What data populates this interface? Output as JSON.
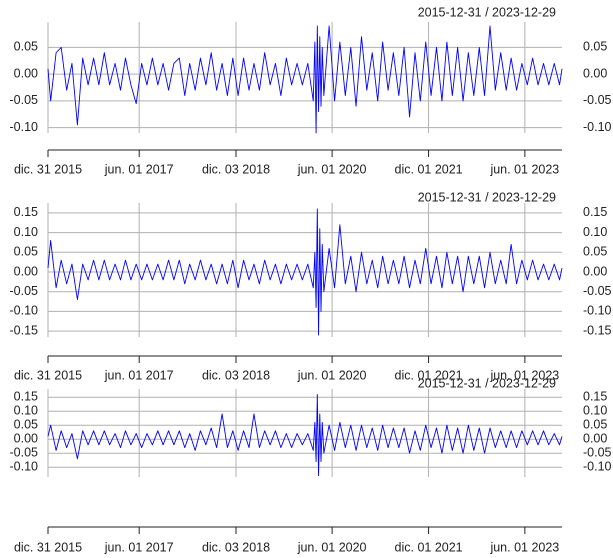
{
  "chart_data": [
    {
      "type": "line",
      "title": "2015-12-31 / 2023-12-29",
      "color": "#0000ff",
      "grid": true,
      "xlim": [
        "2015-12-31",
        "2023-12-29"
      ],
      "xticks": [
        {
          "value": "2015-12-31",
          "label": "dic. 31 2015"
        },
        {
          "value": "2017-06-01",
          "label": "jun. 01 2017"
        },
        {
          "value": "2018-12-03",
          "label": "dic. 03 2018"
        },
        {
          "value": "2020-06-01",
          "label": "jun. 01 2020"
        },
        {
          "value": "2021-12-01",
          "label": "dic. 01 2021"
        },
        {
          "value": "2023-06-01",
          "label": "jun. 01 2023"
        }
      ],
      "ylim": [
        -0.11,
        0.09
      ],
      "yticks": [
        {
          "value": -0.1,
          "label": "-0.10"
        },
        -0.05,
        {
          "value": 0,
          "label": "0.00"
        },
        0.05
      ],
      "x": [
        "2015-12-31",
        "2016-01-15",
        "2016-02-15",
        "2016-03-15",
        "2016-04-15",
        "2016-05-15",
        "2016-06-15",
        "2016-07-15",
        "2016-08-15",
        "2016-09-15",
        "2016-10-15",
        "2016-11-15",
        "2016-12-15",
        "2017-01-15",
        "2017-02-15",
        "2017-03-15",
        "2017-04-15",
        "2017-05-15",
        "2017-06-15",
        "2017-07-15",
        "2017-08-15",
        "2017-09-15",
        "2017-10-15",
        "2017-11-15",
        "2017-12-15",
        "2018-01-15",
        "2018-02-15",
        "2018-03-15",
        "2018-04-15",
        "2018-05-15",
        "2018-06-15",
        "2018-07-15",
        "2018-08-15",
        "2018-09-15",
        "2018-10-15",
        "2018-11-15",
        "2018-12-15",
        "2019-01-15",
        "2019-02-15",
        "2019-03-15",
        "2019-04-15",
        "2019-05-15",
        "2019-06-15",
        "2019-07-15",
        "2019-08-15",
        "2019-09-15",
        "2019-10-15",
        "2019-11-15",
        "2019-12-15",
        "2020-01-15",
        "2020-02-15",
        "2020-02-24",
        "2020-03-02",
        "2020-03-09",
        "2020-03-16",
        "2020-03-23",
        "2020-03-30",
        "2020-04-06",
        "2020-04-15",
        "2020-05-15",
        "2020-06-15",
        "2020-07-15",
        "2020-08-15",
        "2020-09-15",
        "2020-10-15",
        "2020-11-15",
        "2020-12-15",
        "2021-01-15",
        "2021-02-15",
        "2021-03-15",
        "2021-04-15",
        "2021-05-15",
        "2021-06-15",
        "2021-07-15",
        "2021-08-15",
        "2021-09-15",
        "2021-10-15",
        "2021-11-15",
        "2021-12-15",
        "2022-01-15",
        "2022-02-15",
        "2022-03-15",
        "2022-04-15",
        "2022-05-15",
        "2022-06-15",
        "2022-07-15",
        "2022-08-15",
        "2022-09-15",
        "2022-10-15",
        "2022-11-15",
        "2022-12-15",
        "2023-01-15",
        "2023-02-15",
        "2023-03-15",
        "2023-04-15",
        "2023-05-15",
        "2023-06-15",
        "2023-07-15",
        "2023-08-15",
        "2023-09-15",
        "2023-10-15",
        "2023-11-15",
        "2023-12-15",
        "2023-12-29"
      ],
      "values": [
        0.01,
        -0.05,
        0.04,
        0.05,
        -0.03,
        0.02,
        -0.095,
        0.03,
        -0.02,
        0.03,
        -0.02,
        0.04,
        -0.02,
        0.02,
        -0.03,
        0.03,
        -0.02,
        -0.055,
        0.02,
        -0.02,
        0.03,
        -0.02,
        0.02,
        -0.03,
        0.02,
        0.03,
        -0.04,
        0.02,
        -0.03,
        0.03,
        -0.02,
        0.04,
        -0.03,
        0.02,
        -0.04,
        0.03,
        -0.04,
        0.03,
        -0.03,
        0.02,
        -0.03,
        0.04,
        -0.02,
        0.02,
        -0.04,
        0.03,
        -0.02,
        0.02,
        -0.02,
        0.02,
        -0.05,
        0.06,
        -0.11,
        0.09,
        -0.07,
        0.07,
        -0.06,
        0.05,
        -0.04,
        0.09,
        -0.05,
        0.06,
        -0.04,
        0.05,
        -0.06,
        0.07,
        -0.03,
        0.04,
        -0.05,
        0.06,
        -0.03,
        0.04,
        -0.04,
        0.05,
        -0.08,
        0.04,
        -0.05,
        0.06,
        -0.04,
        0.05,
        -0.05,
        0.06,
        -0.04,
        0.05,
        -0.05,
        0.04,
        -0.04,
        0.05,
        -0.04,
        0.09,
        -0.03,
        0.04,
        -0.03,
        0.03,
        -0.03,
        0.02,
        -0.02,
        0.03,
        -0.02,
        0.02,
        -0.02,
        0.02,
        -0.02,
        0.01
      ]
    },
    {
      "type": "line",
      "title": "2015-12-31 / 2023-12-29",
      "color": "#0000ff",
      "grid": true,
      "xlim": [
        "2015-12-31",
        "2023-12-29"
      ],
      "xticks": [
        {
          "value": "2015-12-31",
          "label": "dic. 31 2015"
        },
        {
          "value": "2017-06-01",
          "label": "jun. 01 2017"
        },
        {
          "value": "2018-12-03",
          "label": "dic. 03 2018"
        },
        {
          "value": "2020-06-01",
          "label": "jun. 01 2020"
        },
        {
          "value": "2021-12-01",
          "label": "dic. 01 2021"
        },
        {
          "value": "2023-06-01",
          "label": "jun. 01 2023"
        }
      ],
      "ylim": [
        -0.165,
        0.165
      ],
      "yticks": [
        -0.15,
        {
          "value": -0.1,
          "label": "-0.10"
        },
        -0.05,
        {
          "value": 0,
          "label": "0.00"
        },
        0.05,
        {
          "value": 0.1,
          "label": "0.10"
        },
        0.15
      ],
      "x": [
        "2015-12-31",
        "2016-01-15",
        "2016-02-15",
        "2016-03-15",
        "2016-04-15",
        "2016-05-15",
        "2016-06-15",
        "2016-07-15",
        "2016-08-15",
        "2016-09-15",
        "2016-10-15",
        "2016-11-15",
        "2016-12-15",
        "2017-01-15",
        "2017-02-15",
        "2017-03-15",
        "2017-04-15",
        "2017-05-15",
        "2017-06-15",
        "2017-07-15",
        "2017-08-15",
        "2017-09-15",
        "2017-10-15",
        "2017-11-15",
        "2017-12-15",
        "2018-01-15",
        "2018-02-15",
        "2018-03-15",
        "2018-04-15",
        "2018-05-15",
        "2018-06-15",
        "2018-07-15",
        "2018-08-15",
        "2018-09-15",
        "2018-10-15",
        "2018-11-15",
        "2018-12-15",
        "2019-01-15",
        "2019-02-15",
        "2019-03-15",
        "2019-04-15",
        "2019-05-15",
        "2019-06-15",
        "2019-07-15",
        "2019-08-15",
        "2019-09-15",
        "2019-10-15",
        "2019-11-15",
        "2019-12-15",
        "2020-01-15",
        "2020-02-15",
        "2020-02-24",
        "2020-03-02",
        "2020-03-09",
        "2020-03-16",
        "2020-03-23",
        "2020-03-30",
        "2020-04-06",
        "2020-04-15",
        "2020-05-15",
        "2020-06-15",
        "2020-07-15",
        "2020-08-15",
        "2020-09-15",
        "2020-10-15",
        "2020-11-15",
        "2020-12-15",
        "2021-01-15",
        "2021-02-15",
        "2021-03-15",
        "2021-04-15",
        "2021-05-15",
        "2021-06-15",
        "2021-07-15",
        "2021-08-15",
        "2021-09-15",
        "2021-10-15",
        "2021-11-15",
        "2021-12-15",
        "2022-01-15",
        "2022-02-15",
        "2022-03-15",
        "2022-04-15",
        "2022-05-15",
        "2022-06-15",
        "2022-07-15",
        "2022-08-15",
        "2022-09-15",
        "2022-10-15",
        "2022-11-15",
        "2022-12-15",
        "2023-01-15",
        "2023-02-15",
        "2023-03-15",
        "2023-04-15",
        "2023-05-15",
        "2023-06-15",
        "2023-07-15",
        "2023-08-15",
        "2023-09-15",
        "2023-10-15",
        "2023-11-15",
        "2023-12-15",
        "2023-12-29"
      ],
      "values": [
        0.01,
        0.08,
        -0.04,
        0.03,
        -0.03,
        0.02,
        -0.07,
        0.02,
        -0.02,
        0.03,
        -0.02,
        0.03,
        -0.02,
        0.02,
        -0.02,
        0.03,
        -0.02,
        0.02,
        -0.02,
        0.02,
        -0.02,
        0.02,
        -0.02,
        0.03,
        -0.02,
        0.03,
        -0.03,
        0.02,
        -0.02,
        0.03,
        -0.02,
        0.02,
        -0.03,
        0.02,
        -0.03,
        0.03,
        -0.04,
        0.03,
        -0.02,
        0.02,
        -0.03,
        0.03,
        -0.02,
        0.02,
        -0.03,
        0.02,
        -0.02,
        0.02,
        -0.02,
        0.02,
        -0.04,
        0.05,
        -0.09,
        0.16,
        -0.16,
        0.11,
        -0.1,
        0.07,
        -0.05,
        0.06,
        -0.04,
        0.12,
        -0.03,
        0.04,
        -0.05,
        0.05,
        -0.03,
        0.03,
        -0.04,
        0.04,
        -0.03,
        0.03,
        -0.03,
        0.04,
        -0.04,
        0.03,
        -0.03,
        0.06,
        -0.03,
        0.04,
        -0.04,
        0.05,
        -0.03,
        0.04,
        -0.05,
        0.04,
        -0.03,
        0.04,
        -0.04,
        0.05,
        -0.03,
        0.03,
        -0.03,
        0.07,
        -0.03,
        0.03,
        -0.02,
        0.03,
        -0.02,
        0.02,
        -0.02,
        0.02,
        -0.02,
        0.01
      ]
    },
    {
      "type": "line",
      "title": "2015-12-31 / 2023-12-29",
      "color": "#0000ff",
      "grid": true,
      "xlim": [
        "2015-12-31",
        "2023-12-29"
      ],
      "xticks": [
        {
          "value": "2015-12-31",
          "label": "dic. 31 2015"
        },
        {
          "value": "2017-06-01",
          "label": "jun. 01 2017"
        },
        {
          "value": "2018-12-03",
          "label": "dic. 03 2018"
        },
        {
          "value": "2020-06-01",
          "label": "jun. 01 2020"
        },
        {
          "value": "2021-12-01",
          "label": "dic. 01 2021"
        },
        {
          "value": "2023-06-01",
          "label": "jun. 01 2023"
        }
      ],
      "ylim": [
        -0.135,
        0.165
      ],
      "yticks": [
        {
          "value": -0.1,
          "label": "-0.10"
        },
        -0.05,
        {
          "value": 0,
          "label": "0.00"
        },
        0.05,
        {
          "value": 0.1,
          "label": "0.10"
        },
        0.15
      ],
      "x": [
        "2015-12-31",
        "2016-01-15",
        "2016-02-15",
        "2016-03-15",
        "2016-04-15",
        "2016-05-15",
        "2016-06-15",
        "2016-07-15",
        "2016-08-15",
        "2016-09-15",
        "2016-10-15",
        "2016-11-15",
        "2016-12-15",
        "2017-01-15",
        "2017-02-15",
        "2017-03-15",
        "2017-04-15",
        "2017-05-15",
        "2017-06-15",
        "2017-07-15",
        "2017-08-15",
        "2017-09-15",
        "2017-10-15",
        "2017-11-15",
        "2017-12-15",
        "2018-01-15",
        "2018-02-15",
        "2018-03-15",
        "2018-04-15",
        "2018-05-15",
        "2018-06-15",
        "2018-07-15",
        "2018-08-15",
        "2018-09-15",
        "2018-10-15",
        "2018-11-15",
        "2018-12-15",
        "2019-01-15",
        "2019-02-15",
        "2019-03-15",
        "2019-04-15",
        "2019-05-15",
        "2019-06-15",
        "2019-07-15",
        "2019-08-15",
        "2019-09-15",
        "2019-10-15",
        "2019-11-15",
        "2019-12-15",
        "2020-01-15",
        "2020-02-15",
        "2020-02-24",
        "2020-03-02",
        "2020-03-09",
        "2020-03-16",
        "2020-03-23",
        "2020-03-30",
        "2020-04-06",
        "2020-04-15",
        "2020-05-15",
        "2020-06-15",
        "2020-07-15",
        "2020-08-15",
        "2020-09-15",
        "2020-10-15",
        "2020-11-15",
        "2020-12-15",
        "2021-01-15",
        "2021-02-15",
        "2021-03-15",
        "2021-04-15",
        "2021-05-15",
        "2021-06-15",
        "2021-07-15",
        "2021-08-15",
        "2021-09-15",
        "2021-10-15",
        "2021-11-15",
        "2021-12-15",
        "2022-01-15",
        "2022-02-15",
        "2022-03-15",
        "2022-04-15",
        "2022-05-15",
        "2022-06-15",
        "2022-07-15",
        "2022-08-15",
        "2022-09-15",
        "2022-10-15",
        "2022-11-15",
        "2022-12-15",
        "2023-01-15",
        "2023-02-15",
        "2023-03-15",
        "2023-04-15",
        "2023-05-15",
        "2023-06-15",
        "2023-07-15",
        "2023-08-15",
        "2023-09-15",
        "2023-10-15",
        "2023-11-15",
        "2023-12-15",
        "2023-12-29"
      ],
      "values": [
        0.01,
        0.05,
        -0.04,
        0.03,
        -0.03,
        0.02,
        -0.07,
        0.03,
        -0.02,
        0.03,
        -0.02,
        0.03,
        -0.02,
        0.02,
        -0.03,
        0.03,
        -0.02,
        0.02,
        -0.03,
        0.02,
        -0.02,
        0.03,
        -0.02,
        0.03,
        -0.02,
        0.03,
        -0.03,
        0.02,
        -0.04,
        0.03,
        -0.02,
        0.04,
        -0.03,
        0.09,
        -0.03,
        0.03,
        -0.04,
        0.03,
        -0.03,
        0.09,
        -0.03,
        0.03,
        -0.02,
        0.03,
        -0.03,
        0.02,
        -0.03,
        0.02,
        -0.02,
        0.02,
        -0.04,
        0.06,
        -0.08,
        0.16,
        -0.13,
        0.09,
        -0.08,
        0.06,
        -0.05,
        0.05,
        -0.04,
        0.06,
        -0.03,
        0.05,
        -0.04,
        0.05,
        -0.03,
        0.04,
        -0.04,
        0.05,
        -0.03,
        0.04,
        -0.03,
        0.04,
        -0.05,
        0.03,
        -0.04,
        0.05,
        -0.03,
        0.04,
        -0.05,
        0.05,
        -0.04,
        0.04,
        -0.05,
        0.05,
        -0.04,
        0.04,
        -0.05,
        0.04,
        -0.03,
        0.03,
        -0.03,
        0.03,
        -0.03,
        0.03,
        -0.02,
        0.03,
        -0.02,
        0.03,
        -0.02,
        0.02,
        -0.02,
        0.01
      ]
    }
  ]
}
